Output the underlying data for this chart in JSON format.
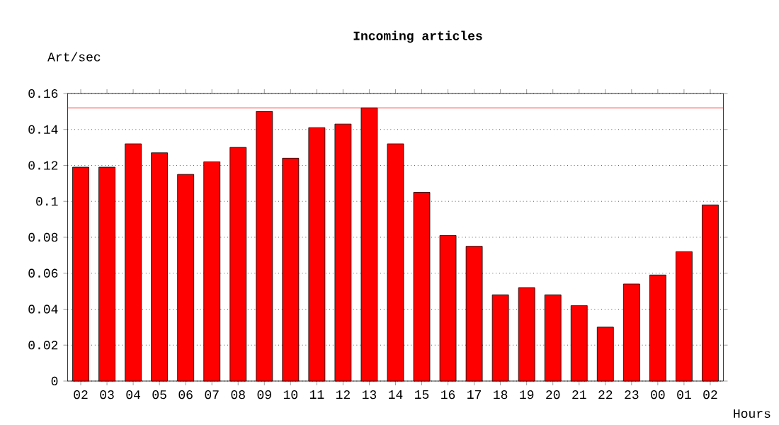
{
  "chart_data": {
    "type": "bar",
    "title": "Incoming articles",
    "xlabel": "Hours",
    "ylabel": "Art/sec",
    "categories": [
      "02",
      "03",
      "04",
      "05",
      "06",
      "07",
      "08",
      "09",
      "10",
      "11",
      "12",
      "13",
      "14",
      "15",
      "16",
      "17",
      "18",
      "19",
      "20",
      "21",
      "22",
      "23",
      "00",
      "01",
      "02"
    ],
    "values": [
      0.119,
      0.119,
      0.132,
      0.127,
      0.115,
      0.122,
      0.13,
      0.15,
      0.124,
      0.141,
      0.143,
      0.152,
      0.132,
      0.105,
      0.081,
      0.075,
      0.048,
      0.052,
      0.048,
      0.042,
      0.03,
      0.054,
      0.059,
      0.072,
      0.098
    ],
    "color": "#ff0000",
    "ylim": [
      0,
      0.16
    ],
    "yticks": [
      0,
      0.02,
      0.04,
      0.06,
      0.08,
      0.1,
      0.12,
      0.14,
      0.16
    ],
    "grid": "y",
    "line_style": "dotted",
    "ref_lines": [
      {
        "axis": "y",
        "value": 0.152,
        "color": "#ff0000"
      }
    ]
  }
}
